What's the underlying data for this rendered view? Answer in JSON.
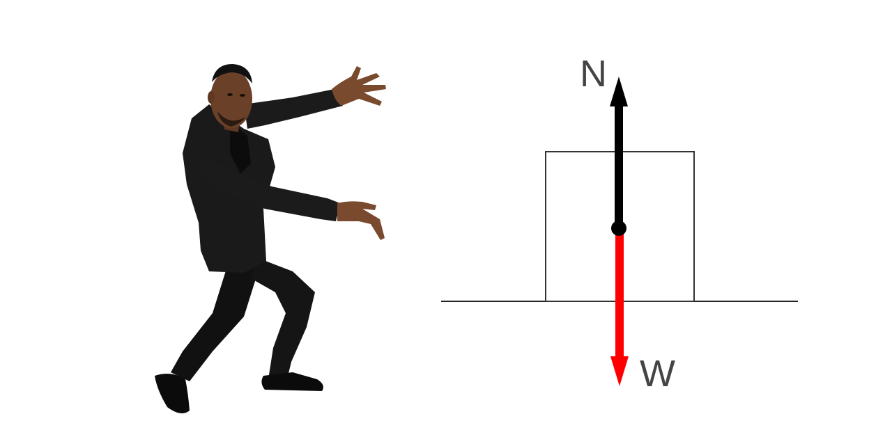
{
  "figure": {
    "description_icon": "presenter-person-icon"
  },
  "diagram": {
    "type": "free-body-diagram",
    "forces": [
      {
        "id": "normal",
        "label": "N",
        "direction": "up",
        "color": "#000000"
      },
      {
        "id": "weight",
        "label": "W",
        "direction": "down",
        "color": "#ff0000"
      }
    ],
    "colors": {
      "ground": "#222222",
      "block": "#333333",
      "label": "#444444"
    }
  }
}
